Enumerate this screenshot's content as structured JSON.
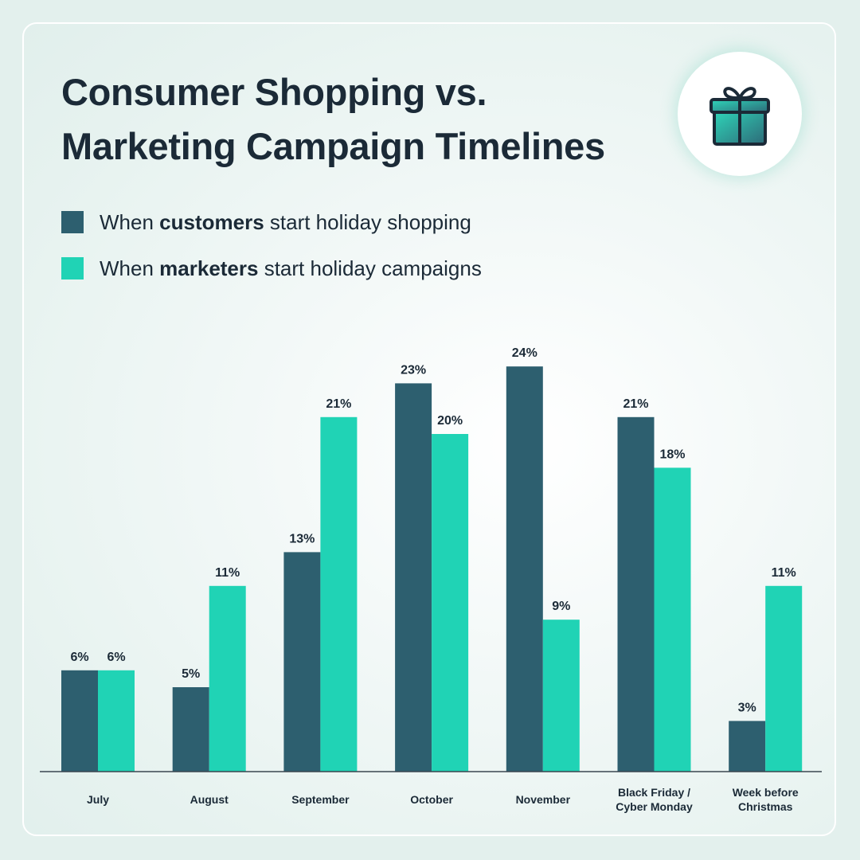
{
  "title": {
    "line1": "Consumer Shopping vs.",
    "line2": "Marketing Campaign Timelines"
  },
  "icon": {
    "name": "gift-icon"
  },
  "legend": [
    {
      "pre": "When ",
      "bold": "customers",
      "post": " start holiday shopping",
      "color": "#2d5f6f"
    },
    {
      "pre": "When ",
      "bold": "marketers",
      "post": " start holiday campaigns",
      "color": "#20d3b5"
    }
  ],
  "colors": {
    "customers": "#2d5f6f",
    "marketers": "#20d3b5",
    "text": "#1b2a37",
    "baseline": "#3a4650"
  },
  "chart_data": {
    "type": "bar",
    "title": "Consumer Shopping vs. Marketing Campaign Timelines",
    "categories": [
      [
        "July"
      ],
      [
        "August"
      ],
      [
        "September"
      ],
      [
        "October"
      ],
      [
        "November"
      ],
      [
        "Black Friday /",
        "Cyber Monday"
      ],
      [
        "Week before",
        "Christmas"
      ]
    ],
    "series": [
      {
        "name": "When customers start holiday shopping",
        "values": [
          6,
          5,
          13,
          23,
          24,
          21,
          3
        ],
        "labels": [
          "6%",
          "5%",
          "13%",
          "23%",
          "24%",
          "21%",
          "3%"
        ]
      },
      {
        "name": "When marketers start holiday campaigns",
        "values": [
          6,
          11,
          21,
          20,
          9,
          18,
          11
        ],
        "labels": [
          "6%",
          "11%",
          "21%",
          "20%",
          "9%",
          "18%",
          "11%"
        ]
      }
    ],
    "value_suffix": "%",
    "ylim": [
      0,
      24
    ],
    "xlabel": "",
    "ylabel": "",
    "grid": false,
    "legend_position": "top-left"
  }
}
